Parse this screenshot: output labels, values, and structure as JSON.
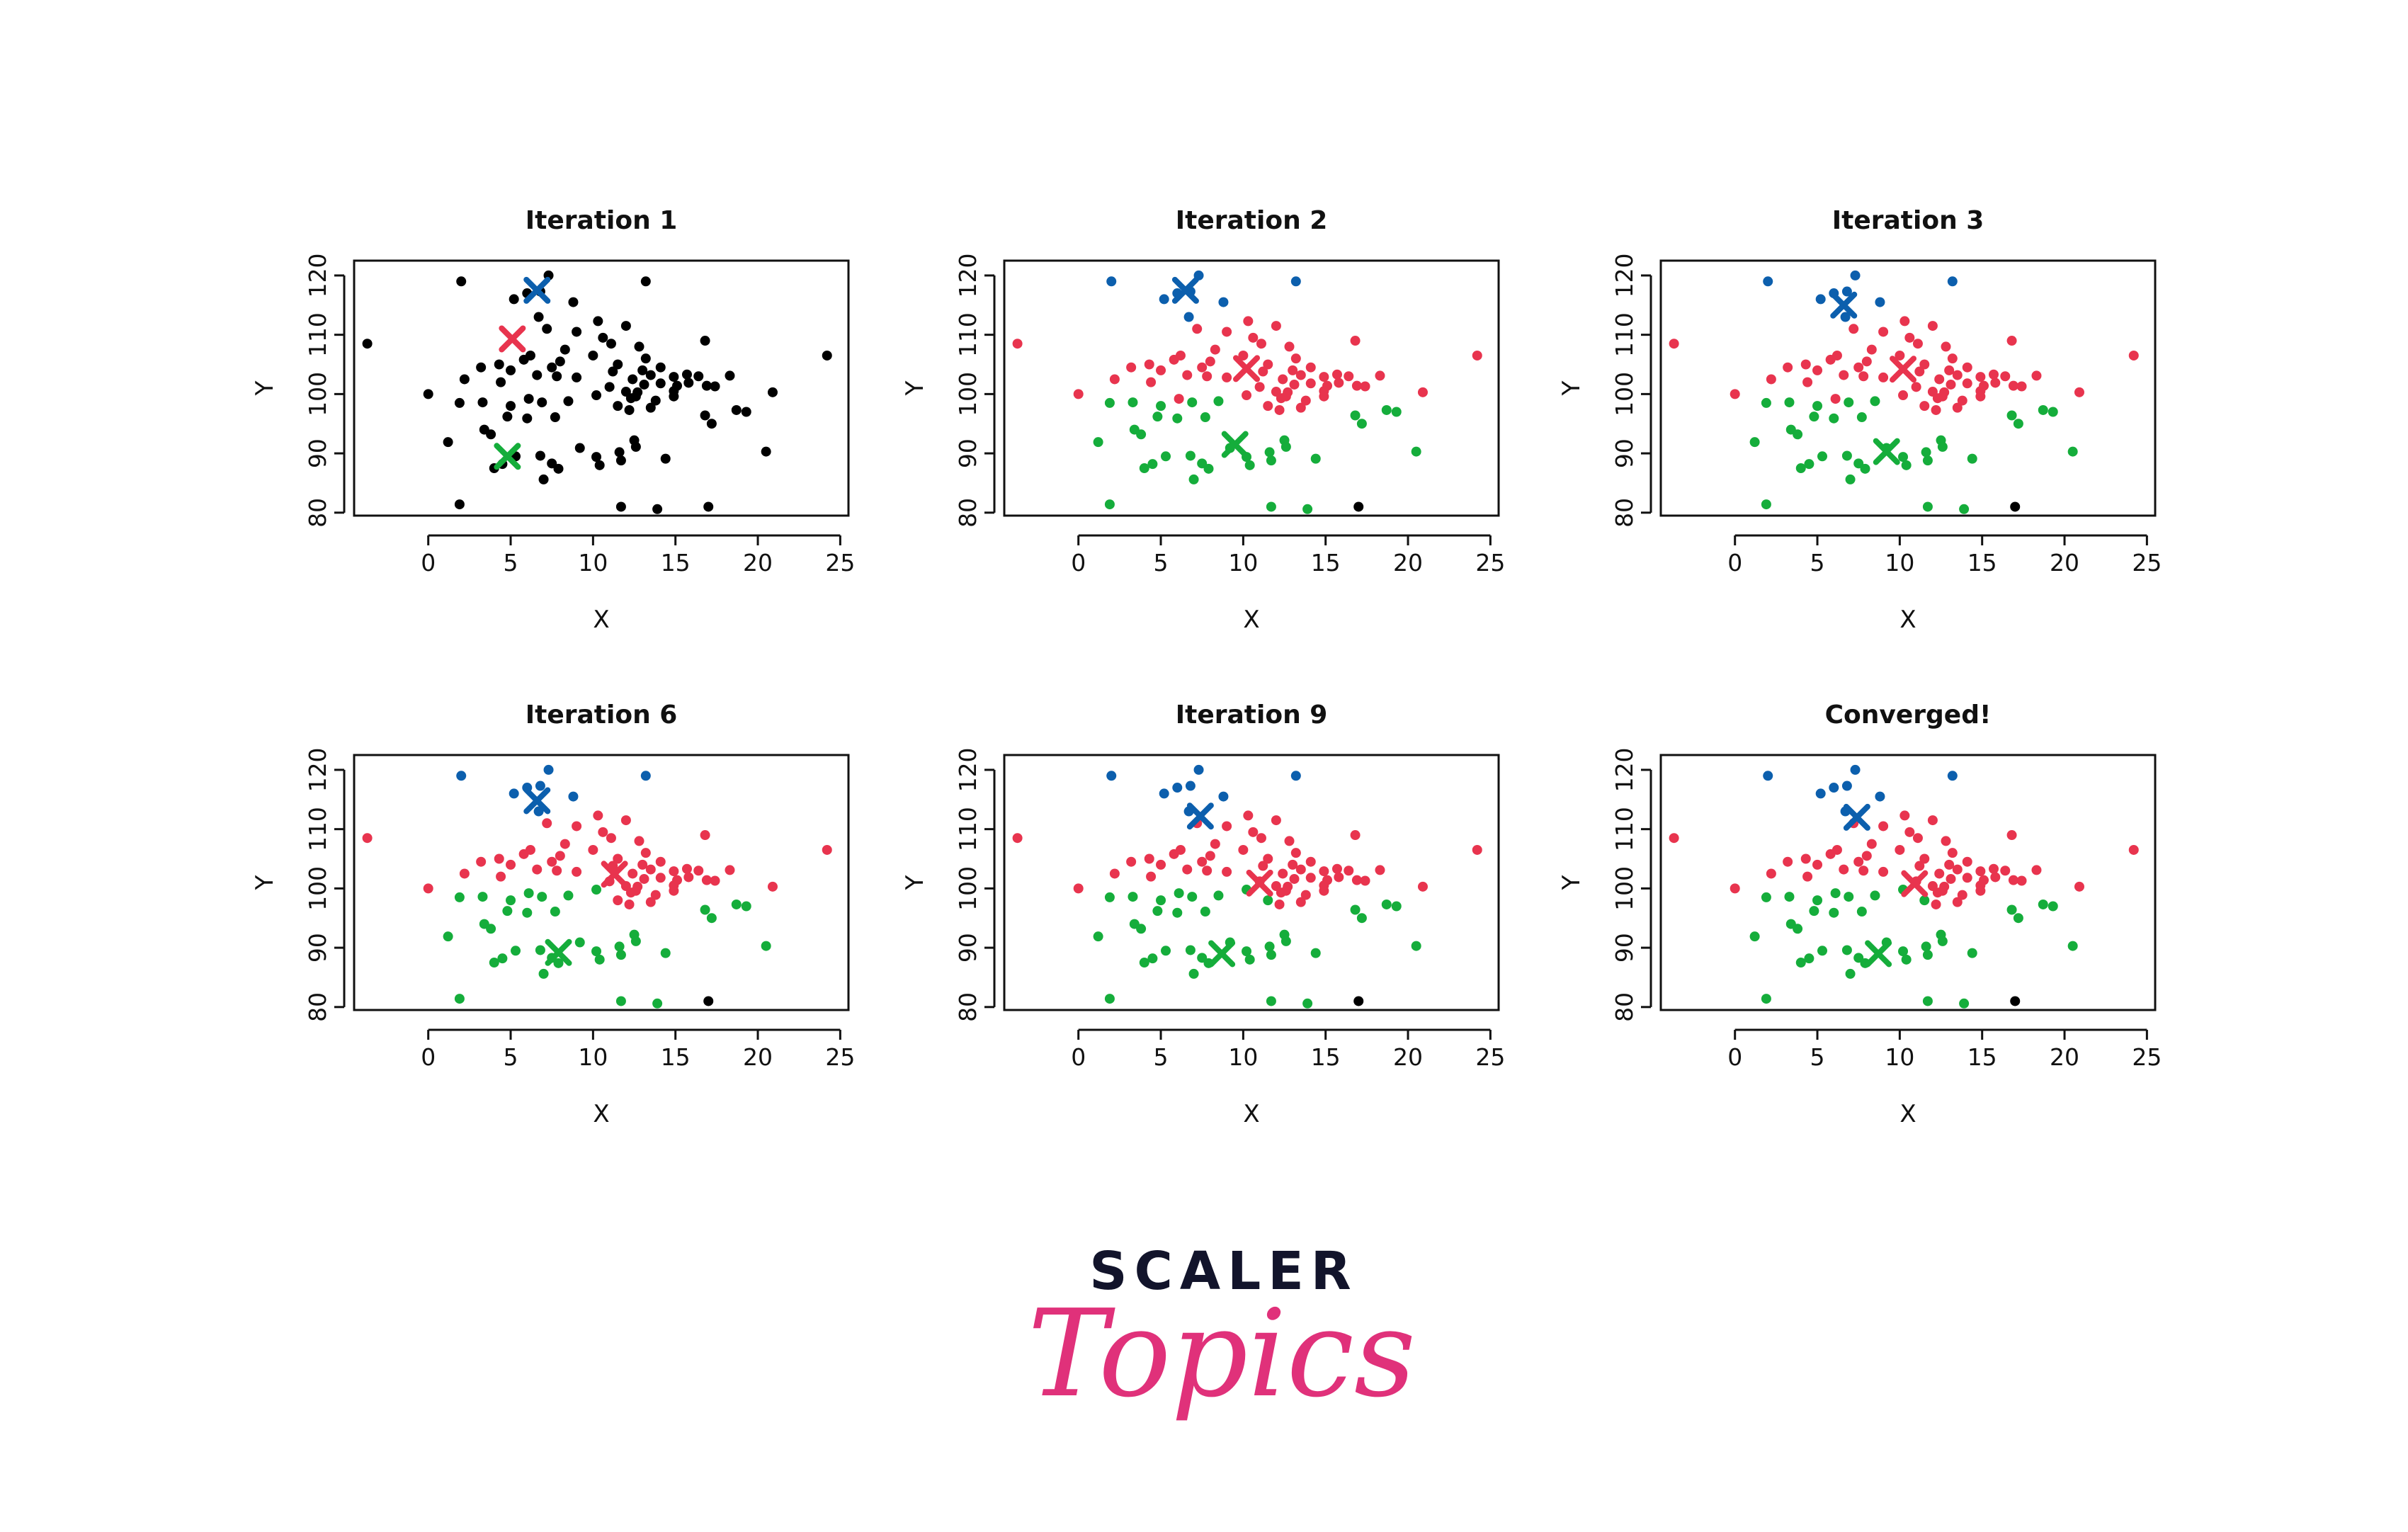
{
  "palette": {
    "cluster1": "#e8344e",
    "cluster2": "#0c5fad",
    "cluster3": "#15ad3b",
    "unassigned": "#000000"
  },
  "logo": {
    "top": "SCALER",
    "bottom": "Topics"
  },
  "chart_data": [
    {
      "type": "scatter",
      "title": "Iteration 1",
      "xlabel": "X",
      "ylabel": "Y",
      "xlim": [
        -4.5,
        25.5
      ],
      "ylim": [
        79.5,
        122.5
      ],
      "xticks": [
        "0",
        "5",
        "10",
        "15",
        "20",
        "25"
      ],
      "yticks": [
        "80",
        "90",
        "100",
        "110",
        "120"
      ],
      "points_color": "unassigned",
      "centroids": [
        {
          "color": "cluster2",
          "x": 6.6,
          "y": 117.5
        },
        {
          "color": "cluster1",
          "x": 5.1,
          "y": 109.3
        },
        {
          "color": "cluster3",
          "x": 4.8,
          "y": 89.5
        }
      ]
    },
    {
      "type": "scatter",
      "title": "Iteration 2",
      "xlabel": "X",
      "ylabel": "Y",
      "xlim": [
        -4.5,
        25.5
      ],
      "ylim": [
        79.5,
        122.5
      ],
      "xticks": [
        "0",
        "5",
        "10",
        "15",
        "20",
        "25"
      ],
      "yticks": [
        "80",
        "90",
        "100",
        "110",
        "120"
      ],
      "assign": [
        2,
        2,
        2,
        2,
        2,
        2,
        2,
        2,
        1,
        1,
        1,
        1,
        1,
        1,
        1,
        1,
        1,
        1,
        1,
        1,
        1,
        1,
        1,
        1,
        1,
        1,
        1,
        1,
        1,
        1,
        1,
        1,
        1,
        1,
        1,
        1,
        1,
        1,
        1,
        1,
        1,
        1,
        1,
        1,
        1,
        1,
        1,
        1,
        1,
        1,
        1,
        1,
        1,
        1,
        1,
        1,
        1,
        1,
        1,
        1,
        1,
        1,
        1,
        1,
        3,
        3,
        3,
        3,
        3,
        3,
        3,
        3,
        3,
        3,
        3,
        3,
        3,
        3,
        3,
        3,
        3,
        3,
        3,
        3,
        3,
        3,
        3,
        3,
        3,
        3,
        3,
        3,
        3,
        3,
        3,
        3,
        3,
        3
      ],
      "centroids": [
        {
          "color": "cluster2",
          "x": 6.5,
          "y": 117.5
        },
        {
          "color": "cluster1",
          "x": 10.2,
          "y": 104.3
        },
        {
          "color": "cluster3",
          "x": 9.5,
          "y": 91.5
        }
      ]
    },
    {
      "type": "scatter",
      "title": "Iteration 3",
      "xlabel": "X",
      "ylabel": "Y",
      "xlim": [
        -4.5,
        25.5
      ],
      "ylim": [
        79.5,
        122.5
      ],
      "xticks": [
        "0",
        "5",
        "10",
        "15",
        "20",
        "25"
      ],
      "yticks": [
        "80",
        "90",
        "100",
        "110",
        "120"
      ],
      "assign": [
        2,
        2,
        2,
        2,
        2,
        2,
        2,
        2,
        1,
        1,
        1,
        1,
        1,
        1,
        1,
        1,
        1,
        1,
        1,
        1,
        1,
        1,
        1,
        1,
        1,
        1,
        1,
        1,
        1,
        1,
        1,
        1,
        1,
        1,
        1,
        1,
        1,
        1,
        1,
        1,
        1,
        1,
        1,
        1,
        1,
        1,
        1,
        1,
        1,
        1,
        1,
        1,
        1,
        1,
        1,
        1,
        1,
        1,
        1,
        1,
        1,
        1,
        1,
        1,
        3,
        3,
        3,
        3,
        3,
        3,
        3,
        3,
        3,
        3,
        3,
        3,
        3,
        3,
        3,
        3,
        3,
        3,
        3,
        3,
        3,
        3,
        3,
        3,
        3,
        3,
        3,
        3,
        3,
        3,
        3,
        3,
        3,
        3
      ],
      "centroids": [
        {
          "color": "cluster2",
          "x": 6.6,
          "y": 115.0
        },
        {
          "color": "cluster1",
          "x": 10.2,
          "y": 104.2
        },
        {
          "color": "cluster3",
          "x": 9.2,
          "y": 90.3
        }
      ]
    },
    {
      "type": "scatter",
      "title": "Iteration 6",
      "xlabel": "X",
      "ylabel": "Y",
      "xlim": [
        -4.5,
        25.5
      ],
      "ylim": [
        79.5,
        122.5
      ],
      "xticks": [
        "0",
        "5",
        "10",
        "15",
        "20",
        "25"
      ],
      "yticks": [
        "80",
        "90",
        "100",
        "110",
        "120"
      ],
      "assign": [
        2,
        2,
        2,
        2,
        2,
        2,
        2,
        2,
        1,
        1,
        1,
        1,
        1,
        1,
        1,
        1,
        1,
        1,
        1,
        1,
        1,
        1,
        1,
        1,
        1,
        1,
        1,
        1,
        1,
        1,
        1,
        1,
        1,
        1,
        1,
        1,
        1,
        1,
        1,
        1,
        1,
        1,
        1,
        1,
        1,
        1,
        1,
        1,
        1,
        1,
        1,
        1,
        1,
        1,
        3,
        3,
        1,
        1,
        1,
        1,
        1,
        1,
        1,
        1,
        3,
        3,
        3,
        3,
        3,
        3,
        3,
        3,
        3,
        3,
        3,
        3,
        3,
        3,
        3,
        3,
        3,
        3,
        3,
        3,
        3,
        3,
        3,
        3,
        3,
        3,
        3,
        3,
        3,
        3,
        3,
        3,
        3,
        3
      ],
      "centroids": [
        {
          "color": "cluster2",
          "x": 6.6,
          "y": 114.8
        },
        {
          "color": "cluster1",
          "x": 11.3,
          "y": 102.4
        },
        {
          "color": "cluster3",
          "x": 7.9,
          "y": 89.2
        }
      ]
    },
    {
      "type": "scatter",
      "title": "Iteration 9",
      "xlabel": "X",
      "ylabel": "Y",
      "xlim": [
        -4.5,
        25.5
      ],
      "ylim": [
        79.5,
        122.5
      ],
      "xticks": [
        "0",
        "5",
        "10",
        "15",
        "20",
        "25"
      ],
      "yticks": [
        "80",
        "90",
        "100",
        "110",
        "120"
      ],
      "assign": [
        2,
        2,
        2,
        2,
        2,
        2,
        2,
        2,
        1,
        1,
        1,
        1,
        1,
        1,
        1,
        1,
        1,
        1,
        1,
        1,
        1,
        1,
        1,
        1,
        1,
        1,
        1,
        1,
        1,
        1,
        1,
        1,
        1,
        1,
        1,
        1,
        1,
        1,
        1,
        1,
        1,
        1,
        1,
        1,
        1,
        1,
        1,
        1,
        1,
        1,
        1,
        1,
        1,
        1,
        3,
        3,
        1,
        1,
        3,
        1,
        1,
        1,
        1,
        1,
        3,
        3,
        3,
        3,
        3,
        3,
        3,
        3,
        3,
        3,
        3,
        3,
        3,
        3,
        3,
        3,
        3,
        3,
        3,
        3,
        3,
        3,
        3,
        3,
        3,
        3,
        3,
        3,
        3,
        3,
        3,
        3,
        3,
        3
      ],
      "centroids": [
        {
          "color": "cluster2",
          "x": 7.4,
          "y": 112.2
        },
        {
          "color": "cluster1",
          "x": 11.0,
          "y": 100.9
        },
        {
          "color": "cluster3",
          "x": 8.7,
          "y": 89.0
        }
      ]
    },
    {
      "type": "scatter",
      "title": "Converged!",
      "xlabel": "X",
      "ylabel": "Y",
      "xlim": [
        -4.5,
        25.5
      ],
      "ylim": [
        79.5,
        122.5
      ],
      "xticks": [
        "0",
        "5",
        "10",
        "15",
        "20",
        "25"
      ],
      "yticks": [
        "80",
        "90",
        "100",
        "110",
        "120"
      ],
      "assign": [
        2,
        2,
        2,
        2,
        2,
        2,
        2,
        2,
        1,
        1,
        1,
        1,
        1,
        1,
        1,
        1,
        1,
        1,
        1,
        1,
        1,
        1,
        1,
        1,
        1,
        1,
        1,
        1,
        1,
        1,
        1,
        1,
        1,
        1,
        1,
        1,
        1,
        1,
        1,
        1,
        1,
        1,
        1,
        1,
        1,
        1,
        1,
        1,
        1,
        1,
        1,
        1,
        1,
        1,
        3,
        3,
        1,
        1,
        3,
        1,
        1,
        1,
        1,
        1,
        3,
        3,
        3,
        3,
        3,
        3,
        3,
        3,
        3,
        3,
        3,
        3,
        3,
        3,
        3,
        3,
        3,
        3,
        3,
        3,
        3,
        3,
        3,
        3,
        3,
        3,
        3,
        3,
        3,
        3,
        3,
        3,
        3,
        3
      ],
      "centroids": [
        {
          "color": "cluster2",
          "x": 7.4,
          "y": 112.0
        },
        {
          "color": "cluster1",
          "x": 10.9,
          "y": 100.8
        },
        {
          "color": "cluster3",
          "x": 8.7,
          "y": 89.0
        }
      ]
    }
  ],
  "points": [
    [
      2.0,
      119.0
    ],
    [
      7.3,
      120.0
    ],
    [
      13.2,
      119.0
    ],
    [
      5.2,
      116.0
    ],
    [
      6.0,
      117.0
    ],
    [
      6.8,
      117.3
    ],
    [
      8.8,
      115.5
    ],
    [
      6.7,
      113.0
    ],
    [
      -3.7,
      108.5
    ],
    [
      24.2,
      106.5
    ],
    [
      20.9,
      100.3
    ],
    [
      0.0,
      100.0
    ],
    [
      7.2,
      111.0
    ],
    [
      9.0,
      110.5
    ],
    [
      10.3,
      112.3
    ],
    [
      10.6,
      109.5
    ],
    [
      11.1,
      108.5
    ],
    [
      12.0,
      111.5
    ],
    [
      12.8,
      108.0
    ],
    [
      16.8,
      109.0
    ],
    [
      8.3,
      107.5
    ],
    [
      10.0,
      106.5
    ],
    [
      13.2,
      106.0
    ],
    [
      6.2,
      106.5
    ],
    [
      5.8,
      105.8
    ],
    [
      5.0,
      104.0
    ],
    [
      4.3,
      105.0
    ],
    [
      3.2,
      104.5
    ],
    [
      7.5,
      104.5
    ],
    [
      8.0,
      105.5
    ],
    [
      11.5,
      105.0
    ],
    [
      14.1,
      104.5
    ],
    [
      13.0,
      104.0
    ],
    [
      2.2,
      102.5
    ],
    [
      4.4,
      102.0
    ],
    [
      6.6,
      103.2
    ],
    [
      7.8,
      103.0
    ],
    [
      9.0,
      102.8
    ],
    [
      11.2,
      103.8
    ],
    [
      12.4,
      102.5
    ],
    [
      13.5,
      103.2
    ],
    [
      14.9,
      102.9
    ],
    [
      15.7,
      103.3
    ],
    [
      15.8,
      101.9
    ],
    [
      16.4,
      103.0
    ],
    [
      17.4,
      101.3
    ],
    [
      18.3,
      103.1
    ],
    [
      16.9,
      101.4
    ],
    [
      15.1,
      101.4
    ],
    [
      14.1,
      101.8
    ],
    [
      13.1,
      101.6
    ],
    [
      12.0,
      100.4
    ],
    [
      11.0,
      101.2
    ],
    [
      12.6,
      99.6
    ],
    [
      6.1,
      99.2
    ],
    [
      10.2,
      99.8
    ],
    [
      13.8,
      98.9
    ],
    [
      14.9,
      99.6
    ],
    [
      11.5,
      98.0
    ],
    [
      12.7,
      100.3
    ],
    [
      14.9,
      100.5
    ],
    [
      12.2,
      97.3
    ],
    [
      13.5,
      97.7
    ],
    [
      12.3,
      99.3
    ],
    [
      1.9,
      98.5
    ],
    [
      3.3,
      98.6
    ],
    [
      5.0,
      98.0
    ],
    [
      6.9,
      98.6
    ],
    [
      8.5,
      98.8
    ],
    [
      7.7,
      96.1
    ],
    [
      3.4,
      94.0
    ],
    [
      3.8,
      93.2
    ],
    [
      4.8,
      96.2
    ],
    [
      6.0,
      95.9
    ],
    [
      1.2,
      91.9
    ],
    [
      4.0,
      87.5
    ],
    [
      4.5,
      88.2
    ],
    [
      5.3,
      89.5
    ],
    [
      6.8,
      89.6
    ],
    [
      7.5,
      88.3
    ],
    [
      7.9,
      87.4
    ],
    [
      7.0,
      85.6
    ],
    [
      9.2,
      90.9
    ],
    [
      10.2,
      89.4
    ],
    [
      11.7,
      88.8
    ],
    [
      11.6,
      90.2
    ],
    [
      10.4,
      88.0
    ],
    [
      12.5,
      92.2
    ],
    [
      12.6,
      91.1
    ],
    [
      14.4,
      89.1
    ],
    [
      16.8,
      96.4
    ],
    [
      17.2,
      95.0
    ],
    [
      18.7,
      97.3
    ],
    [
      19.3,
      97.0
    ],
    [
      20.5,
      90.3
    ],
    [
      1.9,
      81.4
    ],
    [
      11.7,
      81.0
    ],
    [
      13.9,
      80.6
    ],
    [
      17.0,
      81.0
    ]
  ],
  "point_groups": {
    "first_blue": 0,
    "first_red": 8,
    "first_green": 64
  }
}
